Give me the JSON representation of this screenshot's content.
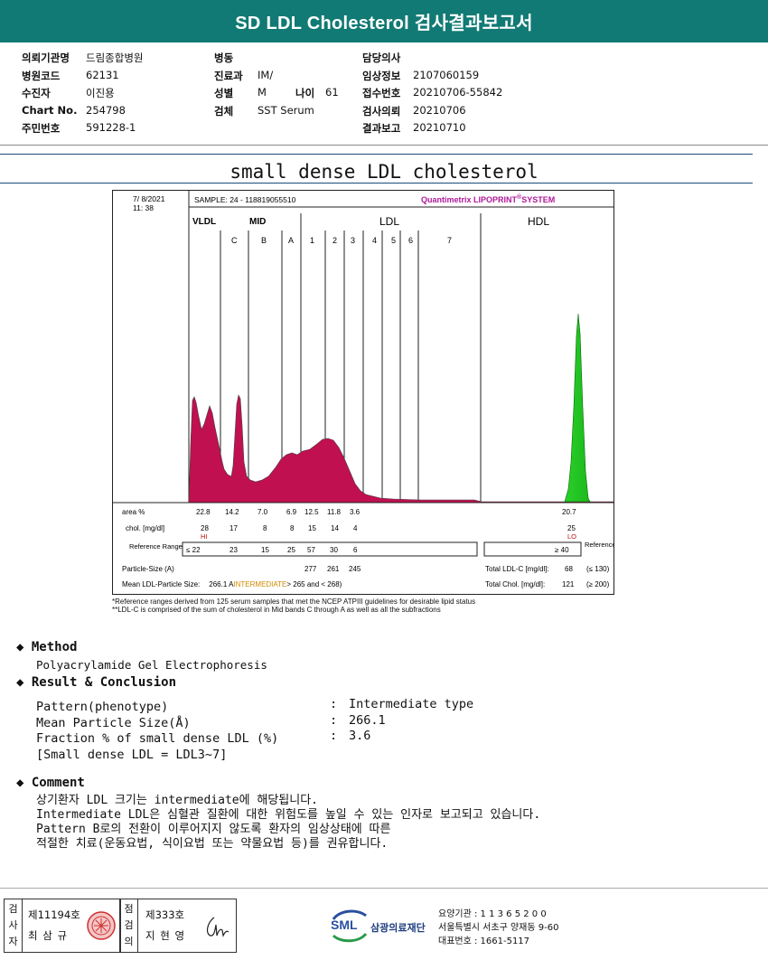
{
  "banner": {
    "title": "SD LDL Cholesterol 검사결과보고서"
  },
  "info": {
    "col1": [
      {
        "label": "의뢰기관명",
        "value": "드림종합병원"
      },
      {
        "label": "병원코드",
        "value": "62131"
      },
      {
        "label": "수진자",
        "value": "이진용"
      },
      {
        "label": "Chart No.",
        "value": "254798"
      },
      {
        "label": "주민번호",
        "value": "591228-1"
      }
    ],
    "col2": [
      {
        "label": "병동",
        "value": ""
      },
      {
        "label": "진료과",
        "value": "IM/"
      },
      {
        "label": "성별",
        "value": "M"
      },
      {
        "label": "검체",
        "value": "SST Serum"
      }
    ],
    "age": {
      "label": "나이",
      "value": "61"
    },
    "col3": [
      {
        "label": "담당의사",
        "value": ""
      },
      {
        "label": "임상정보",
        "value": "2107060159"
      },
      {
        "label": "접수번호",
        "value": "20210706-55842"
      },
      {
        "label": "검사의뢰",
        "value": "20210706"
      },
      {
        "label": "결과보고",
        "value": "20210710"
      }
    ]
  },
  "section_title": "small dense LDL cholesterol",
  "chart": {
    "date": "7/ 8/2021",
    "time": "11: 38",
    "sample": "SAMPLE:   24 - 118819055510",
    "system": "Quantimetrix LIPOPRINT",
    "system_sup": "®",
    "system_suffix": "SYSTEM",
    "groups": [
      "VLDL",
      "MID",
      "LDL",
      "HDL"
    ],
    "bands": [
      "C",
      "B",
      "A",
      "1",
      "2",
      "3",
      "4",
      "5",
      "6",
      "7"
    ],
    "area_label": "area %",
    "area_values": [
      "22.8",
      "14.2",
      "7.0",
      "6.9",
      "12.5",
      "11.8",
      "3.6"
    ],
    "area_hdl": "20.7",
    "chol_label": "chol. [mg/dl]",
    "chol_values": [
      "28",
      "17",
      "8",
      "8",
      "15",
      "14",
      "4"
    ],
    "chol_hdl": "25",
    "hi_flag": "HI",
    "lo_flag": "LO",
    "ref_label": "Reference Range",
    "ref_values": [
      "≤ 22",
      "23",
      "15",
      "25",
      "57",
      "30",
      "6"
    ],
    "ref_hdl": "≥  40",
    "particle_label": "Particle-Size (A)",
    "particle_values": [
      "277",
      "261",
      "245"
    ],
    "mean_label": "Mean LDL-Particle Size:",
    "mean_value": "266.1 A",
    "mean_flag": "INTERMEDIATE",
    "mean_range": "> 265 and < 268)",
    "total_ldl_label": "Total LDL-C [mg/dl]:",
    "total_ldl_value": "68",
    "total_ldl_ref": "(≤ 130)",
    "total_chol_label": "Total Chol. [mg/dl]:",
    "total_chol_value": "121",
    "total_chol_ref": "(≥ 200)",
    "note1": "*Reference ranges derived from 125 serum samples that met the NCEP ATPIII guidelines for desirable lipid status",
    "note2": "**LDL-C is comprised of the sum of cholesterol in Mid bands C through A as well as all the subfractions"
  },
  "method": {
    "heading": "Method",
    "text": "Polyacrylamide Gel Electrophoresis"
  },
  "result": {
    "heading": "Result & Conclusion",
    "rows": [
      {
        "label": "Pattern(phenotype)",
        "value": "Intermediate type"
      },
      {
        "label": "Mean Particle Size(Å)",
        "value": "266.1"
      },
      {
        "label": "Fraction % of small dense LDL (%)",
        "value": "3.6"
      }
    ],
    "extra": "[Small dense LDL = LDL3~7]"
  },
  "comment": {
    "heading": "Comment",
    "lines": [
      "상기환자 LDL 크기는 intermediate에 해당됩니다.",
      "Intermediate LDL은 심혈관 질환에 대한 위험도를 높일 수 있는 인자로 보고되고 있습니다.",
      "Pattern B로의 전환이 이루어지지 않도록 환자의 임상상태에 따른",
      "적절한 치료(운동요법, 식이요법 또는 약물요법 등)를 권유합니다."
    ]
  },
  "footer": {
    "inspector_label": "검사자",
    "inspector_no": "제11194호",
    "inspector_name": "최 삼 규",
    "reviewer_label": "점검의",
    "reviewer_no": "제333호",
    "reviewer_name": "지 현 영",
    "org_logo": "SML",
    "org_name": "삼광의료재단",
    "org_lines": [
      "요양기관 : 1 1 3 6 5 2 0 0",
      "서울특별시 서초구 양재동 9-60",
      "대표번호 : 1661-5117"
    ]
  }
}
